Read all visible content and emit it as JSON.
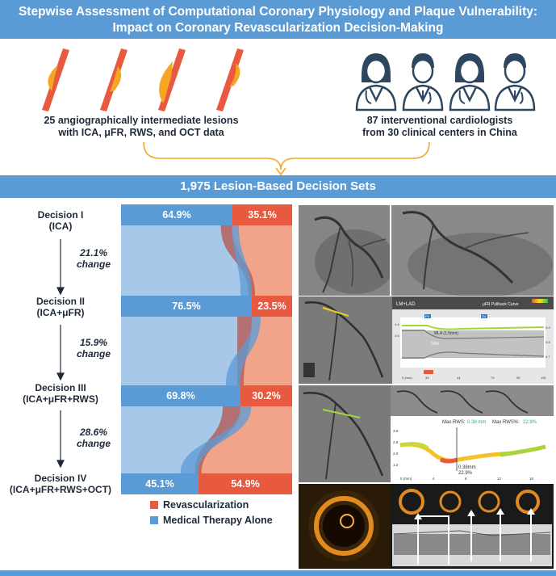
{
  "header": {
    "title_line1": "Stepwise Assessment of Computational Coronary Physiology and Plaque Vulnerability:",
    "title_line2": "Impact on Coronary Revascularization Decision-Making"
  },
  "top": {
    "lesions_line1": "25 angiographically intermediate lesions",
    "lesions_line2": "with ICA, μFR, RWS, and OCT data",
    "cardiologists_line1": "87 interventional cardiologists",
    "cardiologists_line2": "from 30 clinical centers in China"
  },
  "section_title": "1,975 Lesion-Based Decision Sets",
  "decisions": [
    {
      "name": "Decision I",
      "sub": "(ICA)",
      "medical": 64.9,
      "revasc": 35.1,
      "medical_label": "64.9%",
      "revasc_label": "35.1%"
    },
    {
      "name": "Decision II",
      "sub": "(ICA+μFR)",
      "medical": 76.5,
      "revasc": 23.5,
      "medical_label": "76.5%",
      "revasc_label": "23.5%"
    },
    {
      "name": "Decision III",
      "sub": "(ICA+μFR+RWS)",
      "medical": 69.8,
      "revasc": 30.2,
      "medical_label": "69.8%",
      "revasc_label": "30.2%"
    },
    {
      "name": "Decision IV",
      "sub": "(ICA+μFR+RWS+OCT)",
      "medical": 45.1,
      "revasc": 54.9,
      "medical_label": "45.1%",
      "revasc_label": "54.9%"
    }
  ],
  "changes": [
    {
      "value": "21.1%",
      "word": "change"
    },
    {
      "value": "15.9%",
      "word": "change"
    },
    {
      "value": "28.6%",
      "word": "change"
    }
  ],
  "legend": {
    "revasc": "Revascularization",
    "medical": "Medical Therapy Alone"
  },
  "colors": {
    "medical": "#5b9bd5",
    "medical_light": "#a8c8ea",
    "revasc": "#e85a3f",
    "revasc_light": "#f2a48a",
    "band": "#b5534a"
  },
  "panels": {
    "ufr": {
      "vessel": "LM+LAD",
      "curve_title": "μFR Pullback Curve",
      "marker_p": "P4",
      "marker_d": "D4",
      "mla": "MLA (1.5mm)",
      "val1": "0.84",
      "y_top": "4.4",
      "y_mid": "3.6",
      "x0": "0 (mm)",
      "x1": "34",
      "x2": "44",
      "x3": "73",
      "x4": "95",
      "x5": "115",
      "r1": "0.9",
      "r2": "0.8",
      "r3": "0.7"
    },
    "rws": {
      "max_rws_label": "Max RWS:",
      "max_rws_value": "0.38 mm",
      "max_rwsp_label": "Max RWS%:",
      "max_rwsp_value": "22.9%",
      "pt_mm": "0.38mm",
      "pt_pct": "22.9%",
      "y1": "3.6",
      "y2": "2.8",
      "y3": "2.0",
      "y4": "1.2",
      "x0": "0 (mm)",
      "x1": "4",
      "x2": "8",
      "x3": "12",
      "x4": "16"
    }
  }
}
